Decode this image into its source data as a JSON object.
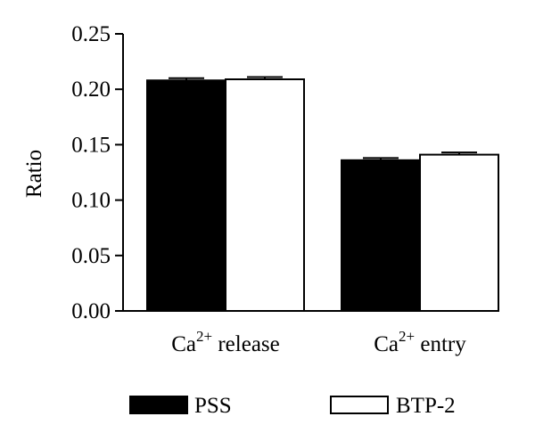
{
  "chart_data": {
    "type": "bar",
    "ylabel": "Ratio",
    "ylim": [
      0,
      0.25
    ],
    "yticks": [
      "0.00",
      "0.05",
      "0.10",
      "0.15",
      "0.20",
      "0.25"
    ],
    "categories": [
      {
        "base": "Ca",
        "sup": "2+",
        "rest": " release"
      },
      {
        "base": "Ca",
        "sup": "2+",
        "rest": " entry"
      }
    ],
    "series": [
      {
        "name": "PSS",
        "color": "#000000",
        "values": [
          0.208,
          0.136
        ],
        "errors": [
          0.002,
          0.002
        ]
      },
      {
        "name": "BTP-2",
        "color": "#ffffff",
        "values": [
          0.209,
          0.141
        ],
        "errors": [
          0.002,
          0.002
        ]
      }
    ],
    "legend_position": "bottom"
  }
}
